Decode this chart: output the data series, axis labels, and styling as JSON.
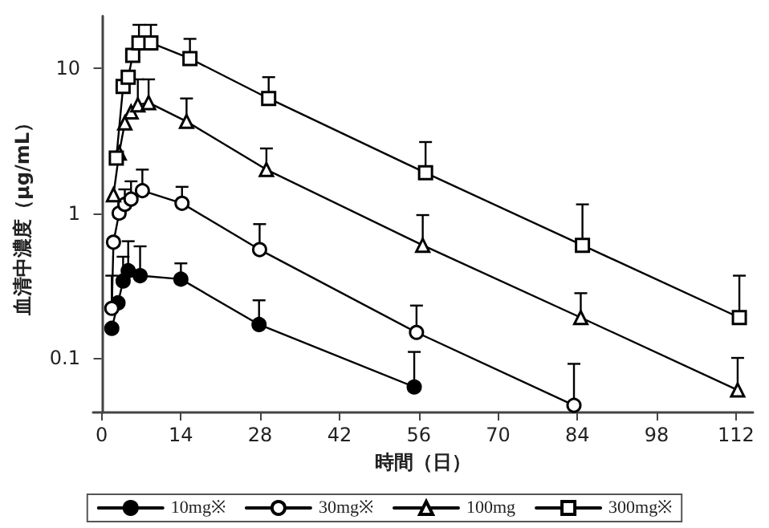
{
  "chart_data": {
    "type": "line",
    "xlabel": "時間（日）",
    "ylabel": "血清中濃度（μg/mL）",
    "log": "y",
    "xlim": [
      -1.5,
      115
    ],
    "xticks": [
      0,
      14,
      28,
      42,
      56,
      70,
      84,
      98,
      112
    ],
    "ylim": [
      0.042,
      23
    ],
    "yticks": [
      0.1,
      1,
      10
    ],
    "grid": false,
    "legend": "bottom",
    "line_style": "solid",
    "series": [
      {
        "name": "10mg※",
        "color": "#000000",
        "marker": "circle",
        "colors": [
          "#000000",
          "#000000",
          "#000000",
          "#000000",
          "#000000",
          "#000000",
          "#000000",
          "#000000"
        ],
        "x": [
          1.8,
          2.9,
          3.8,
          4.7,
          6.8,
          14,
          27.8,
          55.2
        ],
        "values": [
          0.16,
          0.24,
          0.34,
          0.4,
          0.37,
          0.35,
          0.17,
          0.063
        ],
        "errors": [
          null,
          null,
          [
            0.34,
            0.5
          ],
          [
            0.4,
            0.64
          ],
          [
            0.37,
            0.59
          ],
          [
            0.35,
            0.45
          ],
          [
            0.17,
            0.25
          ],
          [
            0.063,
            0.11
          ]
        ]
      },
      {
        "name": "30mg※",
        "color": "#000000",
        "marker": "circle",
        "x": [
          1.8,
          2.1,
          3.1,
          4.1,
          5.2,
          7.2,
          14.2,
          27.9,
          55.6,
          83.4
        ],
        "values": [
          0.22,
          0.63,
          1.0,
          1.15,
          1.25,
          1.43,
          1.17,
          0.56,
          0.15,
          0.047
        ],
        "errors": [
          [
            0.22,
            0.37
          ],
          null,
          null,
          [
            1.15,
            1.46
          ],
          [
            1.25,
            1.66
          ],
          [
            1.43,
            2.0
          ],
          [
            1.17,
            1.52
          ],
          [
            0.56,
            0.84
          ],
          [
            0.15,
            0.23
          ],
          [
            0.047,
            0.091
          ]
        ]
      },
      {
        "name": "100mg",
        "color": "#000000",
        "marker": "triangle",
        "x": [
          2.1,
          3.1,
          4.1,
          5.2,
          6.4,
          8.3,
          15,
          29.1,
          56.7,
          84.6,
          112.3
        ],
        "values": [
          1.34,
          2.6,
          4.2,
          5.0,
          5.6,
          5.8,
          4.3,
          2.0,
          0.6,
          0.19,
          0.06
        ],
        "errors": [
          null,
          null,
          null,
          null,
          [
            5.6,
            8.4
          ],
          [
            5.8,
            8.4
          ],
          [
            4.3,
            6.2
          ],
          [
            2.0,
            2.8
          ],
          [
            0.6,
            0.97
          ],
          [
            0.19,
            0.28
          ],
          [
            0.06,
            0.1
          ]
        ]
      },
      {
        "name": "300mg※",
        "color": "#000000",
        "marker": "square",
        "x": [
          2.6,
          3.8,
          4.7,
          5.5,
          6.6,
          8.7,
          15.6,
          29.5,
          57.2,
          84.9,
          112.6
        ],
        "values": [
          2.4,
          7.5,
          8.7,
          12.3,
          15,
          15,
          11.7,
          6.2,
          1.9,
          0.6,
          0.19
        ],
        "errors": [
          null,
          null,
          null,
          null,
          [
            15,
            20
          ],
          [
            15,
            20
          ],
          [
            11.7,
            16
          ],
          [
            6.2,
            8.7
          ],
          [
            1.9,
            3.1
          ],
          [
            0.6,
            1.15
          ],
          [
            0.19,
            0.37
          ]
        ]
      }
    ]
  }
}
